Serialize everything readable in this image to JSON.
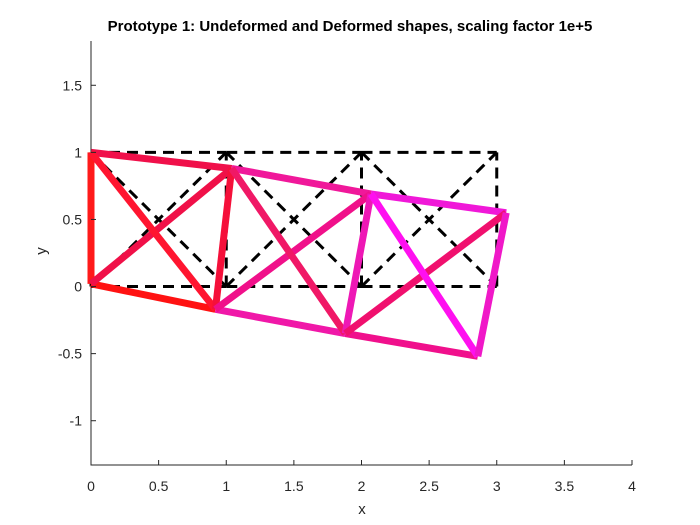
{
  "chart_data": {
    "type": "line",
    "title": "Prototype 1: Undeformed and Deformed shapes, scaling factor 1e+5",
    "xlabel": "x",
    "ylabel": "y",
    "xlim": [
      0,
      4
    ],
    "ylim": [
      -1.33,
      1.83
    ],
    "xticks": [
      "0",
      "0.5",
      "1",
      "1.5",
      "2",
      "2.5",
      "3",
      "3.5",
      "4"
    ],
    "yticks": [
      "-1",
      "-0.5",
      "0",
      "0.5",
      "1",
      "1.5"
    ],
    "grid": false,
    "legend": "none",
    "undeformed": {
      "color": "#000000",
      "style": "dashed",
      "nodes": [
        [
          0,
          0
        ],
        [
          0,
          1
        ],
        [
          1,
          0
        ],
        [
          1,
          1
        ],
        [
          2,
          0
        ],
        [
          2,
          1
        ],
        [
          3,
          0
        ],
        [
          3,
          1
        ]
      ],
      "members": [
        [
          0,
          1
        ],
        [
          0,
          2
        ],
        [
          1,
          3
        ],
        [
          0,
          3
        ],
        [
          1,
          2
        ],
        [
          2,
          3
        ],
        [
          2,
          4
        ],
        [
          3,
          5
        ],
        [
          2,
          5
        ],
        [
          3,
          4
        ],
        [
          4,
          5
        ],
        [
          4,
          6
        ],
        [
          5,
          7
        ],
        [
          4,
          7
        ],
        [
          5,
          6
        ],
        [
          6,
          7
        ]
      ]
    },
    "deformed": {
      "style": "solid",
      "nodes": [
        [
          0,
          0.02
        ],
        [
          0,
          1
        ],
        [
          0.92,
          -0.17
        ],
        [
          1.04,
          0.88
        ],
        [
          1.88,
          -0.35
        ],
        [
          2.07,
          0.69
        ],
        [
          2.86,
          -0.52
        ],
        [
          3.07,
          0.55
        ]
      ],
      "members": [
        {
          "from": 0,
          "to": 1,
          "color": "#ff1a1a"
        },
        {
          "from": 0,
          "to": 2,
          "color": "#ff1212"
        },
        {
          "from": 1,
          "to": 3,
          "color": "#f0104a"
        },
        {
          "from": 0,
          "to": 3,
          "color": "#f01048"
        },
        {
          "from": 1,
          "to": 2,
          "color": "#ff1530"
        },
        {
          "from": 2,
          "to": 3,
          "color": "#f5103a"
        },
        {
          "from": 2,
          "to": 4,
          "color": "#f018a8"
        },
        {
          "from": 3,
          "to": 5,
          "color": "#f0189a"
        },
        {
          "from": 2,
          "to": 5,
          "color": "#f0108a"
        },
        {
          "from": 3,
          "to": 4,
          "color": "#f01866"
        },
        {
          "from": 4,
          "to": 5,
          "color": "#ee18b5"
        },
        {
          "from": 4,
          "to": 6,
          "color": "#f0108c"
        },
        {
          "from": 5,
          "to": 7,
          "color": "#f018d8"
        },
        {
          "from": 4,
          "to": 7,
          "color": "#f0106e"
        },
        {
          "from": 5,
          "to": 6,
          "color": "#ff10f0"
        },
        {
          "from": 6,
          "to": 7,
          "color": "#f018c8"
        }
      ]
    }
  }
}
